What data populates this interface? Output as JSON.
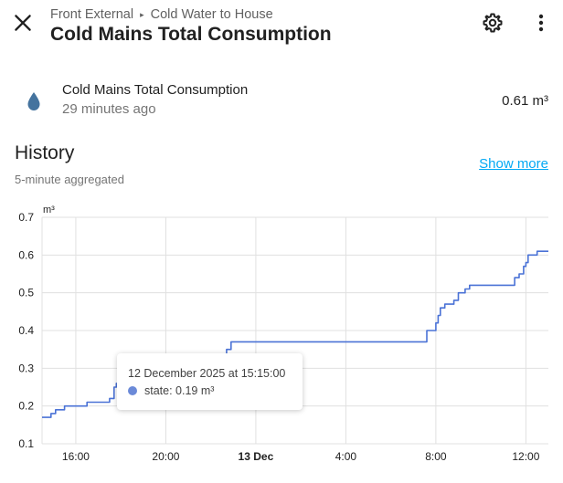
{
  "header": {
    "breadcrumb": [
      "Front External",
      "Cold Water to House"
    ],
    "breadcrumb_separator": "▸",
    "title": "Cold Mains Total Consumption",
    "close_icon": "close-icon",
    "settings_icon": "gear-icon",
    "menu_icon": "more-vertical-icon"
  },
  "entity": {
    "icon": "water-drop-icon",
    "icon_color": "#44739e",
    "name": "Cold Mains Total Consumption",
    "last_changed": "29 minutes ago",
    "state": "0.61 m³"
  },
  "history": {
    "title": "History",
    "subtitle": "5-minute aggregated",
    "show_more": "Show more"
  },
  "chart_data": {
    "type": "line",
    "ylabel": "m³",
    "ylim": [
      0.1,
      0.7
    ],
    "yticks": [
      "0.1",
      "0.2",
      "0.3",
      "0.4",
      "0.5",
      "0.6",
      "0.7"
    ],
    "xlim_hours": [
      14.5,
      37.0
    ],
    "xticks": [
      {
        "label": "16:00",
        "hour": 16,
        "bold": false
      },
      {
        "label": "20:00",
        "hour": 20,
        "bold": false
      },
      {
        "label": "13 Dec",
        "hour": 24,
        "bold": true
      },
      {
        "label": "4:00",
        "hour": 28,
        "bold": false
      },
      {
        "label": "8:00",
        "hour": 32,
        "bold": false
      },
      {
        "label": "12:00",
        "hour": 36,
        "bold": false
      }
    ],
    "grid": true,
    "line_color": "#4a72d6",
    "series": [
      {
        "name": "state",
        "points": [
          [
            14.5,
            0.17
          ],
          [
            14.9,
            0.17
          ],
          [
            14.9,
            0.18
          ],
          [
            15.1,
            0.18
          ],
          [
            15.1,
            0.19
          ],
          [
            15.5,
            0.19
          ],
          [
            15.5,
            0.2
          ],
          [
            16.5,
            0.2
          ],
          [
            16.5,
            0.21
          ],
          [
            17.5,
            0.21
          ],
          [
            17.5,
            0.22
          ],
          [
            17.7,
            0.22
          ],
          [
            17.7,
            0.25
          ],
          [
            17.8,
            0.25
          ],
          [
            17.8,
            0.26
          ],
          [
            18.5,
            0.26
          ],
          [
            18.5,
            0.27
          ],
          [
            19.5,
            0.27
          ],
          [
            19.5,
            0.3
          ],
          [
            20.2,
            0.3
          ],
          [
            20.2,
            0.31
          ],
          [
            21.0,
            0.31
          ],
          [
            21.0,
            0.32
          ],
          [
            22.5,
            0.32
          ],
          [
            22.5,
            0.33
          ],
          [
            22.7,
            0.33
          ],
          [
            22.7,
            0.35
          ],
          [
            22.9,
            0.35
          ],
          [
            22.9,
            0.37
          ],
          [
            31.6,
            0.37
          ],
          [
            31.6,
            0.4
          ],
          [
            32.0,
            0.4
          ],
          [
            32.0,
            0.42
          ],
          [
            32.1,
            0.42
          ],
          [
            32.1,
            0.44
          ],
          [
            32.2,
            0.44
          ],
          [
            32.2,
            0.46
          ],
          [
            32.4,
            0.46
          ],
          [
            32.4,
            0.47
          ],
          [
            32.8,
            0.47
          ],
          [
            32.8,
            0.48
          ],
          [
            33.0,
            0.48
          ],
          [
            33.0,
            0.5
          ],
          [
            33.3,
            0.5
          ],
          [
            33.3,
            0.51
          ],
          [
            33.5,
            0.51
          ],
          [
            33.5,
            0.52
          ],
          [
            35.5,
            0.52
          ],
          [
            35.5,
            0.54
          ],
          [
            35.7,
            0.54
          ],
          [
            35.7,
            0.55
          ],
          [
            35.9,
            0.55
          ],
          [
            35.9,
            0.57
          ],
          [
            36.0,
            0.57
          ],
          [
            36.0,
            0.58
          ],
          [
            36.1,
            0.58
          ],
          [
            36.1,
            0.6
          ],
          [
            36.5,
            0.6
          ],
          [
            36.5,
            0.61
          ],
          [
            37.0,
            0.61
          ]
        ]
      }
    ],
    "tooltip": {
      "title": "12 December 2025 at 15:15:00",
      "label": "state: 0.19 m³",
      "color": "#6b8ad8"
    }
  }
}
